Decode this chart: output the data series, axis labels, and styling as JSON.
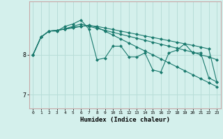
{
  "xlabel": "Humidex (Indice chaleur)",
  "bg_color": "#d4f0ec",
  "grid_color": "#b8ddd8",
  "line_color": "#1a7a6e",
  "x_ticks": [
    0,
    1,
    2,
    3,
    4,
    5,
    6,
    7,
    8,
    9,
    10,
    11,
    12,
    13,
    14,
    15,
    16,
    17,
    18,
    19,
    20,
    21,
    22,
    23
  ],
  "y_ticks": [
    7,
    8
  ],
  "ylim": [
    6.65,
    9.35
  ],
  "xlim": [
    -0.5,
    23.5
  ],
  "series": [
    [
      8.0,
      8.45,
      8.6,
      8.6,
      8.72,
      8.78,
      8.88,
      8.65,
      7.88,
      7.92,
      8.22,
      8.22,
      7.95,
      7.95,
      8.05,
      7.62,
      7.57,
      8.05,
      8.12,
      8.28,
      8.05,
      8.05,
      7.42,
      7.32
    ],
    [
      8.0,
      8.45,
      8.6,
      8.62,
      8.65,
      8.7,
      8.72,
      8.75,
      8.7,
      8.6,
      8.5,
      8.4,
      8.3,
      8.2,
      8.1,
      8.0,
      7.9,
      7.8,
      7.7,
      7.6,
      7.5,
      7.4,
      7.3,
      7.2
    ],
    [
      8.0,
      8.45,
      8.6,
      8.62,
      8.66,
      8.72,
      8.78,
      8.72,
      8.67,
      8.62,
      8.57,
      8.52,
      8.47,
      8.42,
      8.37,
      8.32,
      8.27,
      8.22,
      8.17,
      8.12,
      8.07,
      8.0,
      7.95,
      7.88
    ],
    [
      8.0,
      8.45,
      8.6,
      8.62,
      8.65,
      8.68,
      8.72,
      8.74,
      8.72,
      8.68,
      8.64,
      8.6,
      8.56,
      8.52,
      8.48,
      8.44,
      8.4,
      8.36,
      8.32,
      8.28,
      8.24,
      8.2,
      8.15,
      7.32
    ]
  ],
  "marker": "D",
  "markersize": 2.0,
  "linewidth": 0.8
}
